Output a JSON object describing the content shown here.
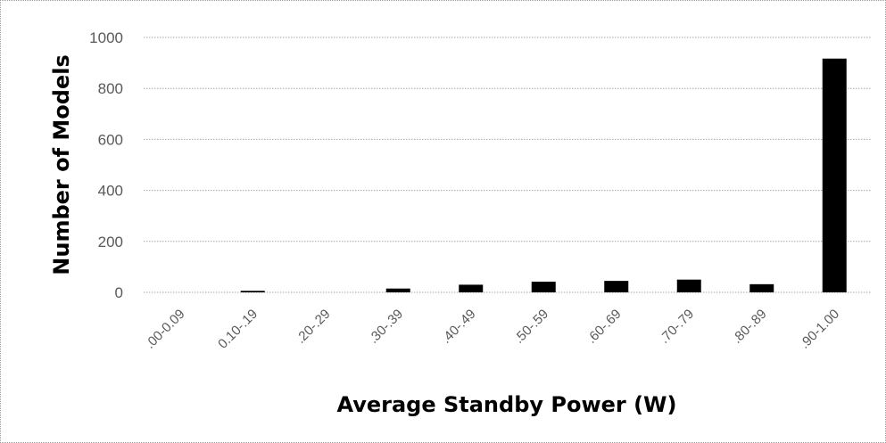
{
  "chart_data": {
    "type": "bar",
    "title": "",
    "xlabel": "Average Standby Power (W)",
    "ylabel": "Number of Models",
    "categories": [
      ".00-0.09",
      "0.10-.19",
      ".20-.29",
      ".30-.39",
      ".40-.49",
      ".50-.59",
      ".60-.69",
      ".70-.79",
      ".80-.89",
      ".90-1.00"
    ],
    "values": [
      0,
      6,
      0,
      15,
      30,
      42,
      45,
      50,
      32,
      917
    ],
    "ylim": [
      0,
      1000
    ],
    "yticks": [
      0,
      200,
      400,
      600,
      800,
      1000
    ],
    "grid": true,
    "legend": "none",
    "colors": {
      "bar": "#000000",
      "grid": "#a6a6a6",
      "tick_text": "#595959",
      "axis_title": "#000000"
    }
  }
}
